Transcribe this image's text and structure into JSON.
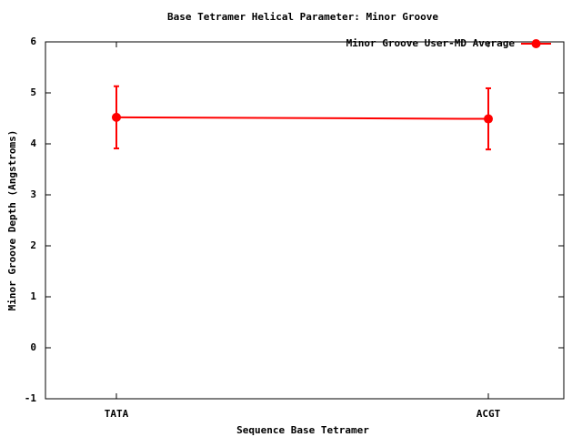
{
  "chart_data": {
    "type": "line",
    "title": "Base Tetramer Helical Parameter: Minor Groove",
    "xlabel": "Sequence Base Tetramer",
    "ylabel": "Minor Groove Depth (Angstroms)",
    "categories": [
      "TATA",
      "ACGT"
    ],
    "series": [
      {
        "name": "Minor Groove User-MD Average",
        "color": "#ff0000",
        "values": [
          4.52,
          4.49
        ],
        "errors": [
          0.61,
          0.6
        ]
      }
    ],
    "ylim": [
      -1,
      6
    ],
    "yticks": [
      -1,
      0,
      1,
      2,
      3,
      4,
      5,
      6
    ],
    "legend": "top-right",
    "grid": false
  }
}
